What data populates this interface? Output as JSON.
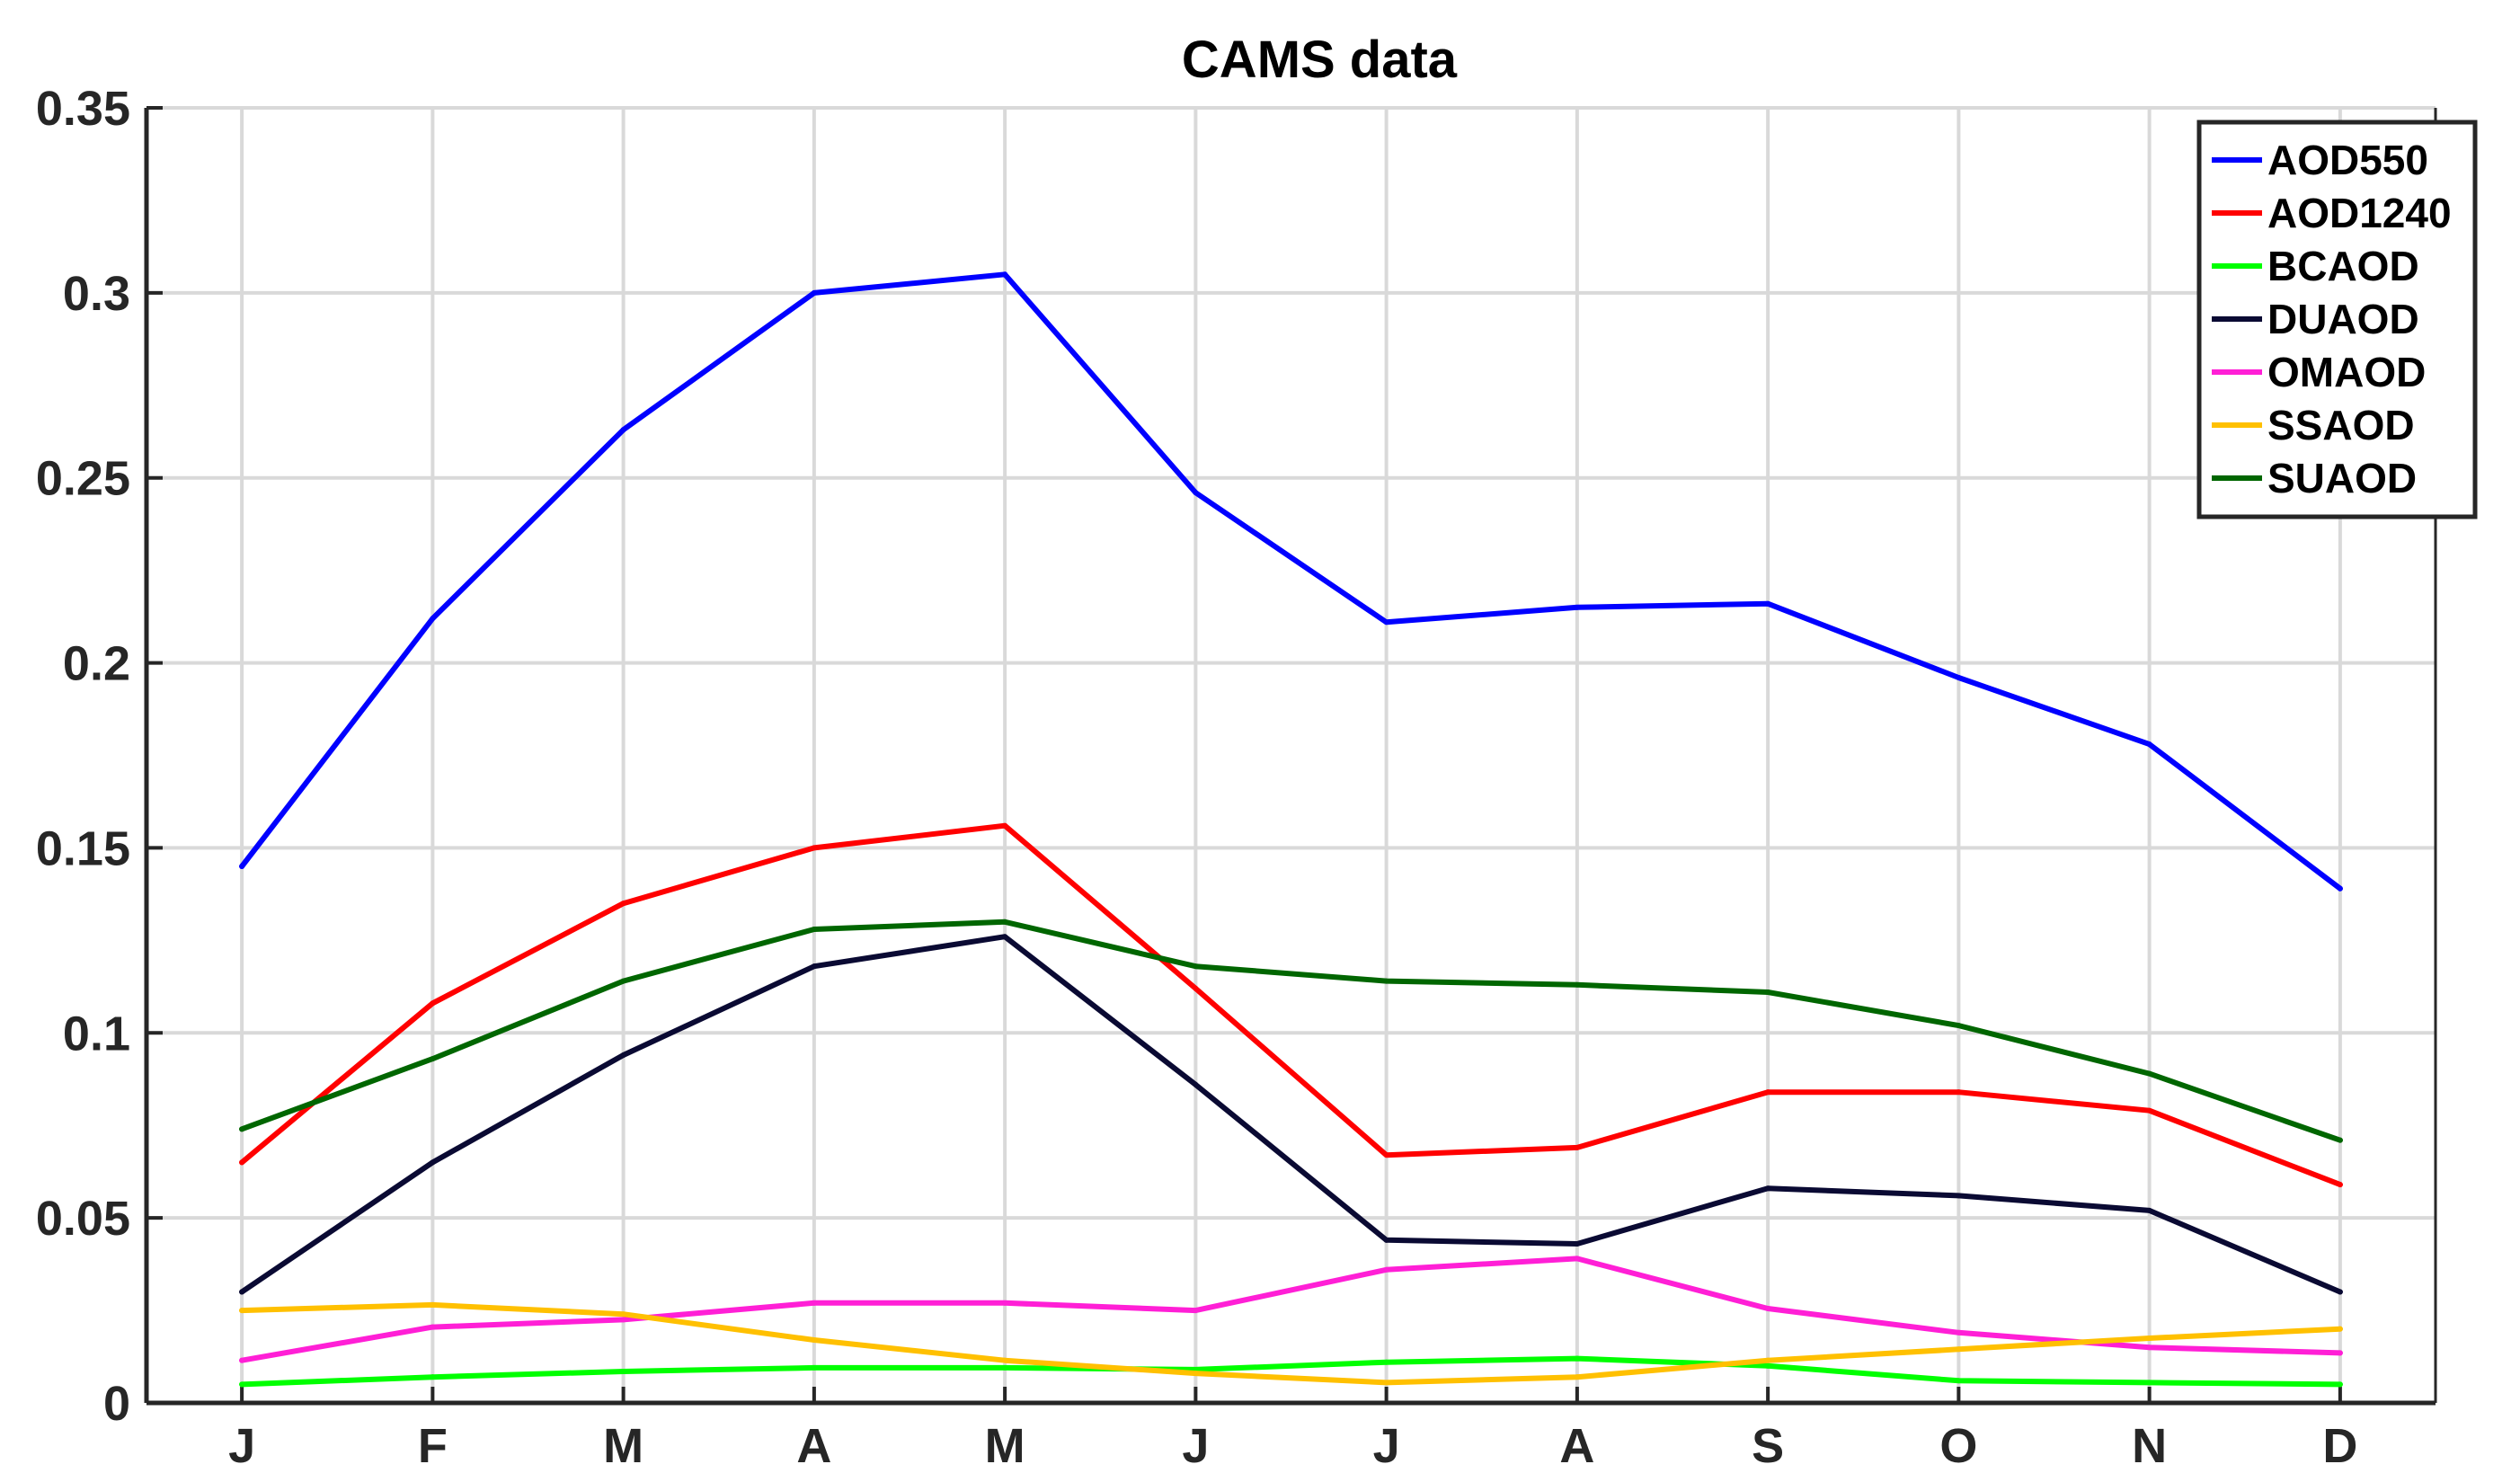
{
  "chart_data": {
    "type": "line",
    "title": "CAMS data",
    "xlabel": "",
    "ylabel": "",
    "categories": [
      "J",
      "F",
      "M",
      "A",
      "M",
      "J",
      "J",
      "A",
      "S",
      "O",
      "N",
      "D"
    ],
    "ylim": [
      0,
      0.35
    ],
    "yticks": [
      0,
      0.05,
      0.1,
      0.15,
      0.2,
      0.25,
      0.3,
      0.35
    ],
    "ytick_labels": [
      "0",
      "0.05",
      "0.1",
      "0.15",
      "0.2",
      "0.25",
      "0.3",
      "0.35"
    ],
    "grid": true,
    "legend_position": "top-right",
    "series": [
      {
        "name": "AOD550",
        "color": "#0000ff",
        "values": [
          0.145,
          0.212,
          0.263,
          0.3,
          0.305,
          0.246,
          0.211,
          0.215,
          0.216,
          0.196,
          0.178,
          0.139
        ]
      },
      {
        "name": "AOD1240",
        "color": "#ff0000",
        "values": [
          0.065,
          0.108,
          0.135,
          0.15,
          0.156,
          0.112,
          0.067,
          0.069,
          0.084,
          0.084,
          0.079,
          0.059
        ]
      },
      {
        "name": "BCAOD",
        "color": "#00ff00",
        "values": [
          0.005,
          0.007,
          0.0085,
          0.0095,
          0.0095,
          0.009,
          0.011,
          0.012,
          0.01,
          0.006,
          0.0055,
          0.005
        ]
      },
      {
        "name": "DUAOD",
        "color": "#0a0a33",
        "values": [
          0.03,
          0.065,
          0.094,
          0.118,
          0.126,
          0.086,
          0.044,
          0.043,
          0.058,
          0.056,
          0.052,
          0.03
        ]
      },
      {
        "name": "OMAOD",
        "color": "#ff1fd6",
        "values": [
          0.0115,
          0.0205,
          0.0225,
          0.027,
          0.027,
          0.025,
          0.036,
          0.039,
          0.0255,
          0.019,
          0.015,
          0.0135
        ]
      },
      {
        "name": "SSAOD",
        "color": "#ffc000",
        "values": [
          0.025,
          0.0265,
          0.024,
          0.017,
          0.0115,
          0.008,
          0.0055,
          0.007,
          0.0115,
          0.0145,
          0.0175,
          0.02
        ]
      },
      {
        "name": "SUAOD",
        "color": "#006600",
        "values": [
          0.074,
          0.093,
          0.114,
          0.128,
          0.13,
          0.118,
          0.114,
          0.113,
          0.111,
          0.102,
          0.089,
          0.071
        ]
      }
    ]
  }
}
